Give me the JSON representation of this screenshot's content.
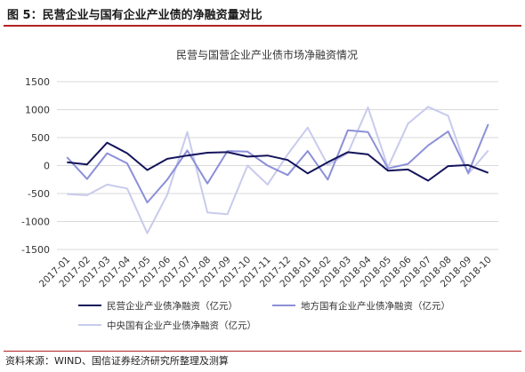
{
  "figure": {
    "title": "图 5：民营企业与国有企业产业债的净融资量对比",
    "source": "资料来源：WIND、国信证券经济研究所整理及测算"
  },
  "chart_data": {
    "type": "line",
    "title": "民营与国营企业产业债市场净融资情况",
    "xlabel": "",
    "ylabel": "",
    "ylim": [
      -1500,
      1500
    ],
    "yticks": [
      -1500,
      -1000,
      -500,
      0,
      500,
      1000,
      1500
    ],
    "grid": true,
    "legend_position": "bottom",
    "categories": [
      "2017-01",
      "2017-02",
      "2017-03",
      "2017-04",
      "2017-05",
      "2017-06",
      "2017-07",
      "2017-08",
      "2017-09",
      "2017-10",
      "2017-11",
      "2017-12",
      "2018-01",
      "2018-02",
      "2018-03",
      "2018-04",
      "2018-05",
      "2018-06",
      "2018-07",
      "2018-08",
      "2018-09",
      "2018-10"
    ],
    "series": [
      {
        "name": "民营企业产业债净融资（亿元）",
        "color": "#14145a",
        "values": [
          60,
          20,
          410,
          220,
          -80,
          120,
          180,
          230,
          240,
          160,
          180,
          100,
          -140,
          60,
          240,
          200,
          -90,
          -70,
          -270,
          -10,
          10,
          -130
        ]
      },
      {
        "name": "地方国有企业产业债净融资（亿元）",
        "color": "#8c90d8",
        "values": [
          150,
          -240,
          220,
          40,
          -660,
          -250,
          270,
          -320,
          260,
          250,
          0,
          -170,
          260,
          -250,
          630,
          600,
          -50,
          30,
          360,
          610,
          -130,
          740
        ]
      },
      {
        "name": "中央国有企业产业债净融资（亿元）",
        "color": "#c8cbec",
        "values": [
          -510,
          -530,
          -340,
          -410,
          -1210,
          -520,
          600,
          -840,
          -870,
          0,
          -340,
          200,
          680,
          10,
          220,
          1040,
          -30,
          750,
          1050,
          890,
          -150,
          270
        ]
      }
    ]
  }
}
